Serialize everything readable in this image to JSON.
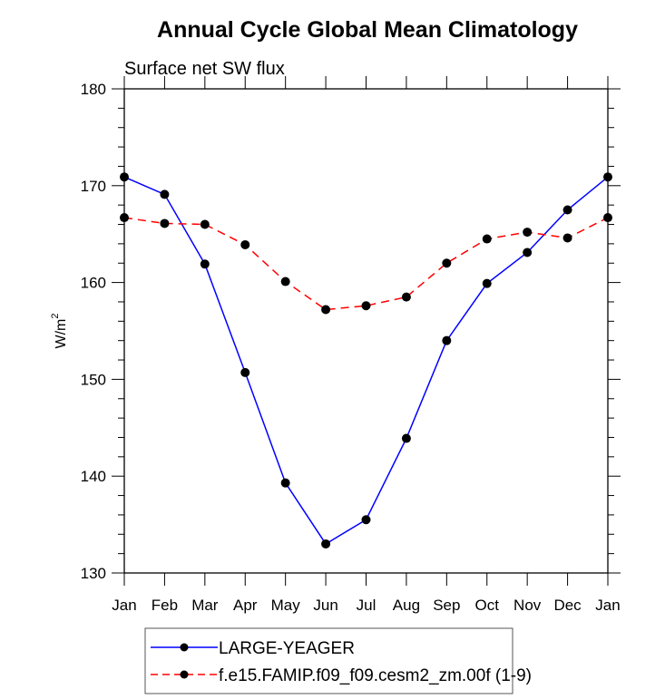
{
  "chart_data": {
    "type": "line",
    "title": "Annual Cycle Global Mean Climatology",
    "subtitle": "Surface net SW flux",
    "xlabel": "",
    "ylabel": "W/m",
    "ylabel_superscript": "2",
    "ylim": [
      130,
      180
    ],
    "yticks": [
      130,
      140,
      150,
      160,
      170,
      180
    ],
    "yminor_step": 2,
    "categories": [
      "Jan",
      "Feb",
      "Mar",
      "Apr",
      "May",
      "Jun",
      "Jul",
      "Aug",
      "Sep",
      "Oct",
      "Nov",
      "Dec",
      "Jan"
    ],
    "grid": false,
    "legend_position": "bottom-center",
    "series": [
      {
        "name": "LARGE-YEAGER",
        "color": "#0000ff",
        "line_style": "solid",
        "marker": "filled-circle",
        "values": [
          170.9,
          169.1,
          161.9,
          150.7,
          139.3,
          133.0,
          135.5,
          143.9,
          154.0,
          159.9,
          163.1,
          167.5,
          170.9
        ]
      },
      {
        "name": "f.e15.FAMIP.f09_f09.cesm2_zm.00f (1-9)",
        "color": "#ff0000",
        "line_style": "dashed",
        "marker": "filled-circle",
        "values": [
          166.7,
          166.1,
          166.0,
          163.9,
          160.1,
          157.2,
          157.6,
          158.5,
          162.0,
          164.5,
          165.2,
          164.6,
          166.7
        ]
      }
    ]
  }
}
